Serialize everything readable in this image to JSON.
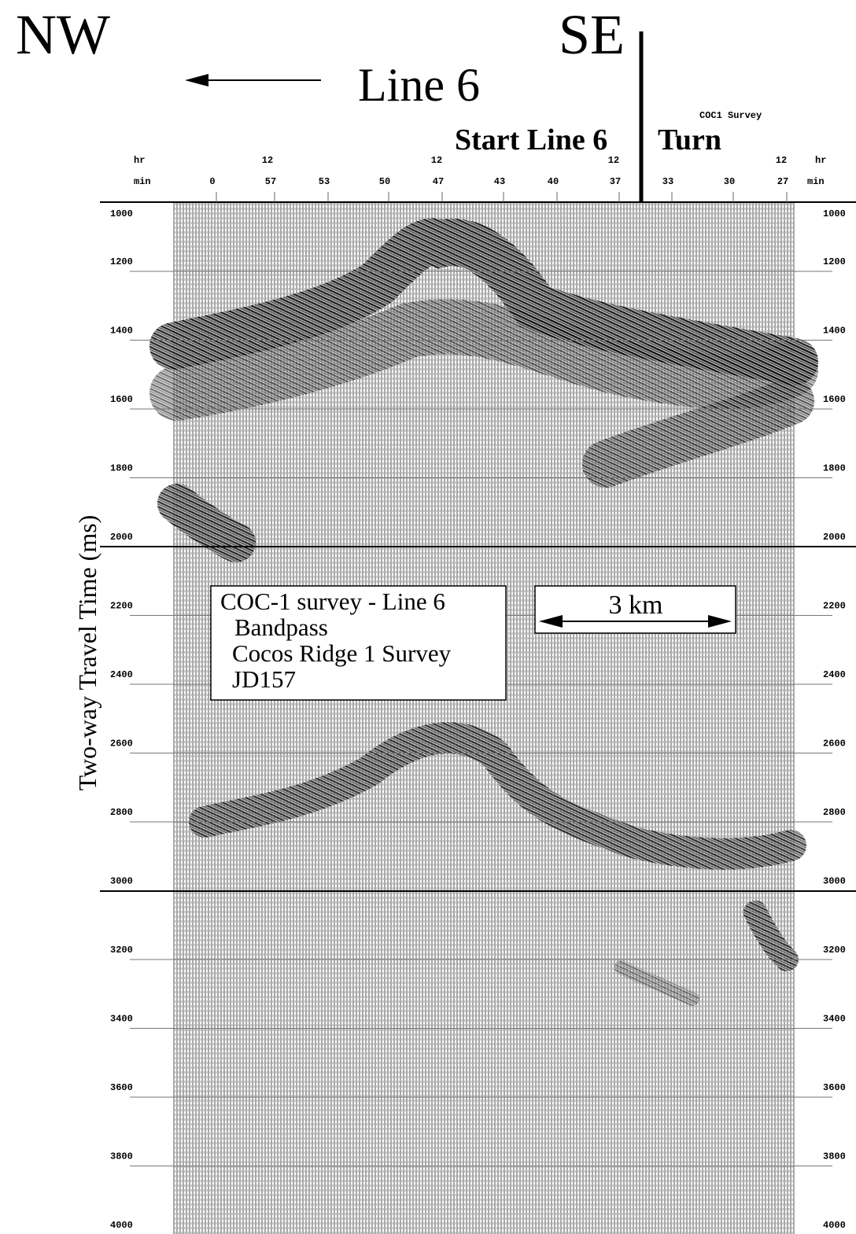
{
  "header": {
    "left_direction": "NW",
    "right_direction": "SE",
    "line_label": "Line 6",
    "survey_note": "COC1 Survey",
    "start_label": "Start Line 6",
    "turn_label": "Turn"
  },
  "time_axis": {
    "hr_label": "hr",
    "min_label": "min",
    "hours": [
      "12",
      "12",
      "12",
      "12"
    ],
    "minutes": [
      "0",
      "57",
      "53",
      "50",
      "47",
      "43",
      "40",
      "37",
      "33",
      "30",
      "27"
    ]
  },
  "y_axis": {
    "title": "Two-way Travel Time (ms)",
    "ticks": [
      "1000",
      "1200",
      "1400",
      "1600",
      "1800",
      "2000",
      "2200",
      "2400",
      "2600",
      "2800",
      "3000",
      "3200",
      "3400",
      "3600",
      "3800",
      "4000"
    ]
  },
  "legend": {
    "lines": [
      "COC-1 survey - Line 6",
      "Bandpass",
      "Cocos Ridge 1 Survey",
      "JD157"
    ]
  },
  "scale_bar": {
    "label": "3 km"
  }
}
